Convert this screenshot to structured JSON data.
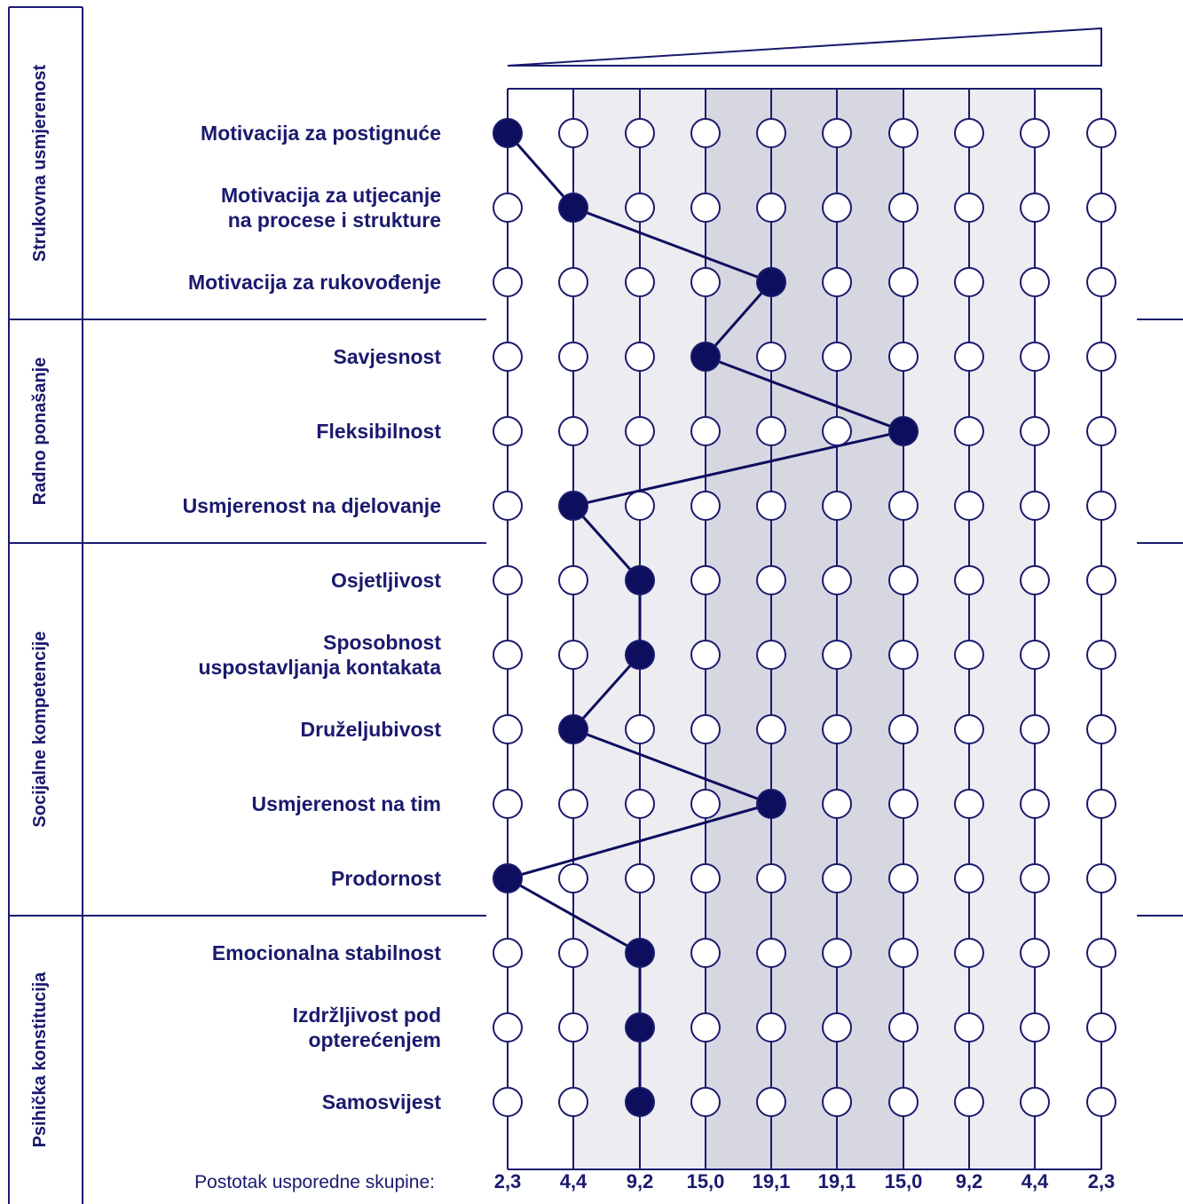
{
  "colors": {
    "ink": "#1a1a6e",
    "band_light": "#ececf1",
    "band_dark": "#d7d7e1",
    "open_marker": "#ffffff",
    "filled_marker": "#0e0e5e"
  },
  "footer": {
    "label": "Postotak usporedne skupine:"
  },
  "chart_data": {
    "type": "line",
    "x_tick_labels": [
      "2,3",
      "4,4",
      "9,2",
      "15,0",
      "19,1",
      "19,1",
      "15,0",
      "9,2",
      "4,4",
      "2,3"
    ],
    "x_range": [
      1,
      10
    ],
    "shaded_bands": [
      {
        "from": 2,
        "to": 9,
        "shade": "light"
      },
      {
        "from": 4,
        "to": 7,
        "shade": "dark"
      }
    ],
    "groups": [
      {
        "label": "Strukovna usmjerenost",
        "items": [
          0,
          1,
          2
        ]
      },
      {
        "label": "Radno ponašanje",
        "items": [
          3,
          4,
          5
        ]
      },
      {
        "label": "Socijalne kompetencije",
        "items": [
          6,
          7,
          8,
          9,
          10
        ]
      },
      {
        "label": "Psihička konstitucija",
        "items": [
          11,
          12,
          13
        ]
      }
    ],
    "items": [
      {
        "label": [
          "Motivacija za postignuće"
        ],
        "value": 1
      },
      {
        "label": [
          "Motivacija za utjecanje",
          "na procese i strukture"
        ],
        "value": 2
      },
      {
        "label": [
          "Motivacija za rukovođenje"
        ],
        "value": 5
      },
      {
        "label": [
          "Savjesnost"
        ],
        "value": 4
      },
      {
        "label": [
          "Fleksibilnost"
        ],
        "value": 7
      },
      {
        "label": [
          "Usmjerenost na djelovanje"
        ],
        "value": 2
      },
      {
        "label": [
          "Osjetljivost"
        ],
        "value": 3
      },
      {
        "label": [
          "Sposobnost",
          "uspostavljanja kontakata"
        ],
        "value": 3
      },
      {
        "label": [
          "Druželjubivost"
        ],
        "value": 2
      },
      {
        "label": [
          "Usmjerenost na tim"
        ],
        "value": 5
      },
      {
        "label": [
          "Prodornost"
        ],
        "value": 1
      },
      {
        "label": [
          "Emocionalna stabilnost"
        ],
        "value": 3
      },
      {
        "label": [
          "Izdržljivost pod",
          "opterećenjem"
        ],
        "value": 3
      },
      {
        "label": [
          "Samosvijest"
        ],
        "value": 3
      }
    ]
  }
}
